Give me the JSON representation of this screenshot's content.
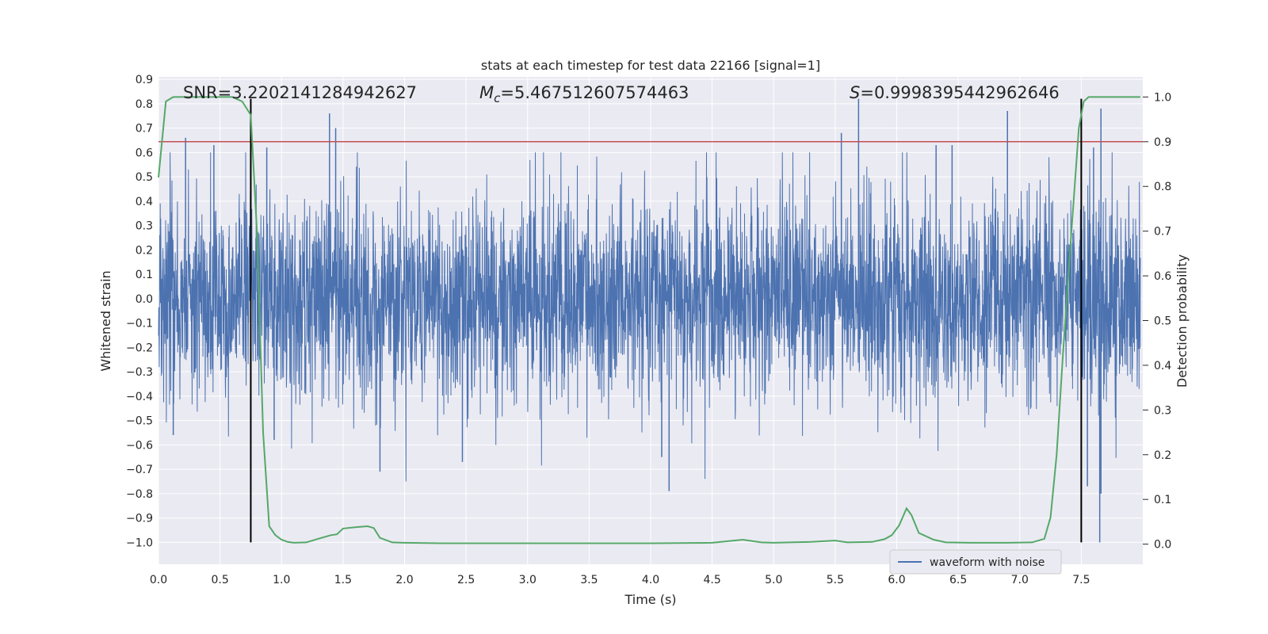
{
  "chart_data": {
    "type": "line",
    "title": "stats at each timestep for test data 22166 [signal=1]",
    "xlabel": "Time (s)",
    "ylabel": "Whitened strain",
    "y2label": "Detection probability",
    "xlim": [
      0.0,
      8.0
    ],
    "ylim": [
      -1.09,
      0.91
    ],
    "y2lim": [
      -0.045,
      1.045
    ],
    "xticks": [
      0.0,
      0.5,
      1.0,
      1.5,
      2.0,
      2.5,
      3.0,
      3.5,
      4.0,
      4.5,
      5.0,
      5.5,
      6.0,
      6.5,
      7.0,
      7.5
    ],
    "yticks": [
      0.9,
      0.8,
      0.7,
      0.6,
      0.5,
      0.4,
      0.3,
      0.2,
      0.1,
      0.0,
      -0.1,
      -0.2,
      -0.3,
      -0.4,
      -0.5,
      -0.6,
      -0.7,
      -0.8,
      -0.9,
      -1.0
    ],
    "y2ticks": [
      1.0,
      0.9,
      0.8,
      0.7,
      0.6,
      0.5,
      0.4,
      0.3,
      0.2,
      0.1,
      0.0
    ],
    "grid": true,
    "legend_placement": "lower-right",
    "annotations": {
      "snr": "SNR=3.220214128494262 7",
      "snr_text": "SNR=3.2202141284942627",
      "mc_symbol": "M",
      "mc_sub": "c",
      "mc_value": "=5.467512607574463",
      "s_symbol": "S",
      "s_value": "=0.9998395442962646"
    },
    "threshold": {
      "value": 0.9,
      "axis": "y2",
      "color": "#c44e52"
    },
    "vlines": [
      {
        "x": 0.75,
        "y_from": -1.0,
        "y_to": 0.82
      },
      {
        "x": 7.5,
        "y_from": -1.0,
        "y_to": 0.82
      }
    ],
    "series": [
      {
        "name": "waveform with noise",
        "axis": "y",
        "color": "#4c72b0",
        "envelope_typical": 0.27,
        "peaks": [
          {
            "x": 0.22,
            "y": 0.66
          },
          {
            "x": 0.45,
            "y": 0.63
          },
          {
            "x": 0.88,
            "y": 0.62
          },
          {
            "x": 1.39,
            "y": 0.76
          },
          {
            "x": 1.44,
            "y": 0.7
          },
          {
            "x": 5.69,
            "y": 0.82
          },
          {
            "x": 5.55,
            "y": 0.68
          },
          {
            "x": 6.32,
            "y": 0.63
          },
          {
            "x": 6.45,
            "y": 0.63
          },
          {
            "x": 6.9,
            "y": 0.77
          },
          {
            "x": 7.6,
            "y": 0.62
          },
          {
            "x": 7.66,
            "y": 0.78
          }
        ],
        "troughs": [
          {
            "x": 0.12,
            "y": -0.56
          },
          {
            "x": 0.94,
            "y": -0.58
          },
          {
            "x": 1.8,
            "y": -0.71
          },
          {
            "x": 2.47,
            "y": -0.67
          },
          {
            "x": 4.15,
            "y": -0.79
          },
          {
            "x": 4.09,
            "y": -0.65
          },
          {
            "x": 7.55,
            "y": -0.77
          },
          {
            "x": 7.65,
            "y": -1.0
          },
          {
            "x": 7.66,
            "y": -0.8
          }
        ]
      },
      {
        "name": "",
        "axis": "y2",
        "color": "#55a868",
        "x": [
          0.0,
          0.06,
          0.12,
          0.2,
          0.3,
          0.4,
          0.5,
          0.6,
          0.68,
          0.75,
          0.8,
          0.85,
          0.9,
          0.95,
          1.0,
          1.05,
          1.1,
          1.2,
          1.3,
          1.4,
          1.45,
          1.5,
          1.6,
          1.7,
          1.75,
          1.8,
          1.9,
          2.0,
          2.3,
          2.6,
          3.0,
          3.5,
          4.0,
          4.5,
          4.75,
          4.9,
          5.0,
          5.3,
          5.5,
          5.6,
          5.8,
          5.9,
          5.96,
          6.02,
          6.08,
          6.12,
          6.18,
          6.3,
          6.4,
          6.6,
          6.9,
          7.1,
          7.2,
          7.25,
          7.3,
          7.35,
          7.42,
          7.48,
          7.52,
          7.56,
          7.62,
          7.7,
          7.8,
          7.98
        ],
        "y": [
          0.82,
          0.99,
          1.0,
          1.0,
          1.0,
          1.0,
          1.0,
          1.0,
          0.99,
          0.96,
          0.7,
          0.25,
          0.04,
          0.02,
          0.01,
          0.005,
          0.003,
          0.004,
          0.012,
          0.02,
          0.022,
          0.035,
          0.038,
          0.04,
          0.036,
          0.014,
          0.004,
          0.003,
          0.002,
          0.002,
          0.002,
          0.002,
          0.002,
          0.003,
          0.01,
          0.004,
          0.003,
          0.005,
          0.008,
          0.004,
          0.005,
          0.011,
          0.02,
          0.042,
          0.08,
          0.065,
          0.025,
          0.01,
          0.004,
          0.003,
          0.003,
          0.004,
          0.012,
          0.06,
          0.2,
          0.42,
          0.7,
          0.93,
          0.99,
          1.0,
          1.0,
          1.0,
          1.0,
          1.0
        ]
      }
    ]
  }
}
